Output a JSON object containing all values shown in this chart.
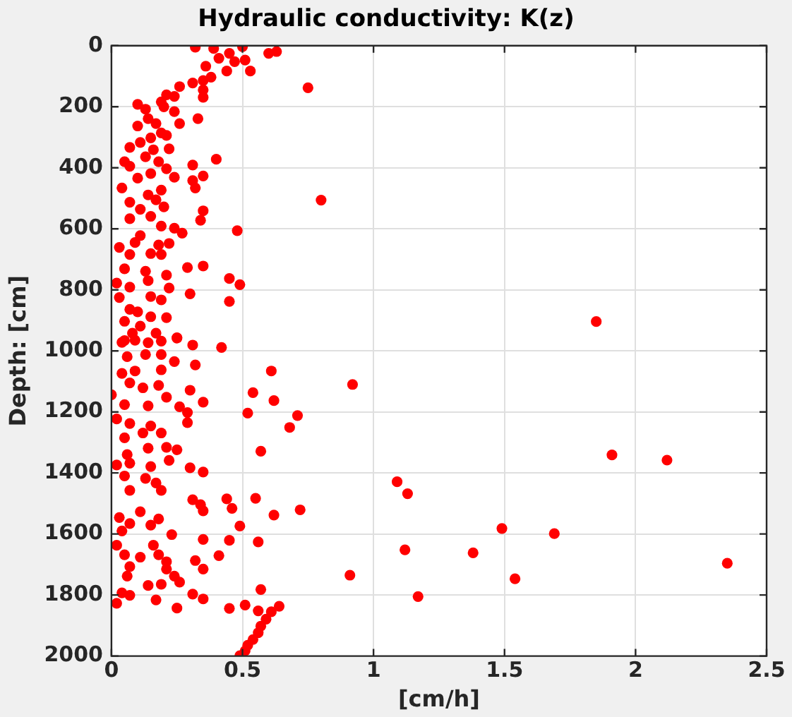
{
  "chart_data": {
    "type": "scatter",
    "title": "Hydraulic conductivity: K(z)",
    "xlabel": "[cm/h]",
    "ylabel": "Depth: [cm]",
    "xlim": [
      0,
      2.5
    ],
    "xticks": [
      0,
      0.5,
      1,
      1.5,
      2,
      2.5
    ],
    "ylim": [
      2000,
      0
    ],
    "yticks": [
      0,
      200,
      400,
      600,
      800,
      1000,
      1200,
      1400,
      1600,
      1800,
      2000
    ],
    "grid": true,
    "marker": "circle",
    "series": [
      {
        "color": "#ff0000",
        "x": [
          0.32,
          0.39,
          0.45,
          0.5,
          0.41,
          0.47,
          0.51,
          0.53,
          0.6,
          0.63,
          0.36,
          0.44,
          0.38,
          0.35,
          0.31,
          0.26,
          0.21,
          0.35,
          0.35,
          0.24,
          0.19,
          0.1,
          0.13,
          0.2,
          0.24,
          0.14,
          0.1,
          0.17,
          0.26,
          0.33,
          0.19,
          0.15,
          0.21,
          0.11,
          0.07,
          0.16,
          0.22,
          0.4,
          0.13,
          0.05,
          0.18,
          0.31,
          0.07,
          0.21,
          0.15,
          0.24,
          0.35,
          0.31,
          0.1,
          0.04,
          0.32,
          0.19,
          0.14,
          0.07,
          0.17,
          0.11,
          0.2,
          0.35,
          0.15,
          0.07,
          0.34,
          0.24,
          0.19,
          0.11,
          0.27,
          0.03,
          0.09,
          0.18,
          0.22,
          0.07,
          0.15,
          0.19,
          0.05,
          0.13,
          0.21,
          0.29,
          0.35,
          0.02,
          0.14,
          0.07,
          0.22,
          0.45,
          0.49,
          0.3,
          0.15,
          0.19,
          0.03,
          0.45,
          0.07,
          0.1,
          0.15,
          0.21,
          0.05,
          0.11,
          0.08,
          0.17,
          0.05,
          0.25,
          0.31,
          0.42,
          0.14,
          0.75,
          0.8,
          0.48,
          0.04,
          0.09,
          0.19,
          0.25,
          0.06,
          0.13,
          0.19,
          0.24,
          0.32,
          0.61,
          0.04,
          0.09,
          0.19,
          0.0,
          0.07,
          0.12,
          0.18,
          0.3,
          0.21,
          0.35,
          0.54,
          0.62,
          0.05,
          0.14,
          0.26,
          0.29,
          0.52,
          0.71,
          0.68,
          0.29,
          0.02,
          0.07,
          0.15,
          0.19,
          0.05,
          0.12,
          0.21,
          0.25,
          0.14,
          0.57,
          0.06,
          0.02,
          0.07,
          0.15,
          0.22,
          0.3,
          0.35,
          0.05,
          0.13,
          0.17,
          0.07,
          0.19,
          0.31,
          0.34,
          0.35,
          0.44,
          0.46,
          0.55,
          0.62,
          0.72,
          0.49,
          0.03,
          0.11,
          0.18,
          0.07,
          0.15,
          0.04,
          0.23,
          0.35,
          0.45,
          0.56,
          0.02,
          0.16,
          0.05,
          0.11,
          0.18,
          0.41,
          0.32,
          0.21,
          0.07,
          0.35,
          0.21,
          0.06,
          0.24,
          0.26,
          0.14,
          0.19,
          0.04,
          0.07,
          0.31,
          0.35,
          0.57,
          0.02,
          0.17,
          0.25,
          0.45,
          0.51,
          0.56,
          0.64,
          0.61,
          0.59,
          0.57,
          0.56,
          0.54,
          0.52,
          0.51,
          0.49,
          1.85,
          0.92,
          1.91,
          2.12,
          1.09,
          1.13,
          1.49,
          1.69,
          1.12,
          1.38,
          2.35,
          0.91,
          1.54,
          1.17
        ],
        "values": [
          5,
          9,
          25,
          3,
          41,
          52,
          47,
          83,
          25,
          19,
          67,
          83,
          103,
          114,
          122,
          134,
          161,
          145,
          169,
          166,
          184,
          192,
          208,
          200,
          216,
          239,
          263,
          255,
          255,
          239,
          286,
          302,
          294,
          317,
          333,
          341,
          338,
          372,
          364,
          380,
          380,
          391,
          395,
          403,
          419,
          431,
          427,
          442,
          434,
          466,
          466,
          473,
          489,
          513,
          505,
          536,
          528,
          541,
          559,
          567,
          572,
          598,
          591,
          622,
          614,
          661,
          645,
          653,
          648,
          684,
          681,
          684,
          731,
          739,
          752,
          727,
          722,
          778,
          770,
          791,
          794,
          763,
          783,
          813,
          822,
          833,
          825,
          838,
          864,
          872,
          888,
          891,
          903,
          919,
          942,
          942,
          966,
          958,
          981,
          989,
          973,
          138,
          506,
          606,
          972,
          965,
          968,
          957,
          1019,
          1012,
          1012,
          1035,
          1046,
          1066,
          1074,
          1066,
          1062,
          1144,
          1105,
          1121,
          1113,
          1129,
          1152,
          1168,
          1137,
          1163,
          1176,
          1180,
          1183,
          1202,
          1204,
          1212,
          1251,
          1235,
          1223,
          1238,
          1246,
          1269,
          1285,
          1269,
          1316,
          1324,
          1319,
          1329,
          1340,
          1374,
          1368,
          1379,
          1359,
          1383,
          1397,
          1410,
          1418,
          1433,
          1457,
          1457,
          1488,
          1504,
          1524,
          1485,
          1516,
          1483,
          1538,
          1521,
          1574,
          1546,
          1527,
          1551,
          1566,
          1571,
          1590,
          1602,
          1618,
          1621,
          1626,
          1637,
          1637,
          1668,
          1676,
          1668,
          1671,
          1687,
          1691,
          1707,
          1715,
          1715,
          1738,
          1738,
          1758,
          1769,
          1765,
          1793,
          1801,
          1797,
          1813,
          1782,
          1827,
          1816,
          1843,
          1844,
          1833,
          1852,
          1837,
          1855,
          1879,
          1902,
          1924,
          1946,
          1965,
          1983,
          1999,
          904,
          1110,
          1341,
          1358,
          1429,
          1468,
          1582,
          1599,
          1652,
          1662,
          1696,
          1735,
          1747,
          1805
        ]
      }
    ]
  }
}
